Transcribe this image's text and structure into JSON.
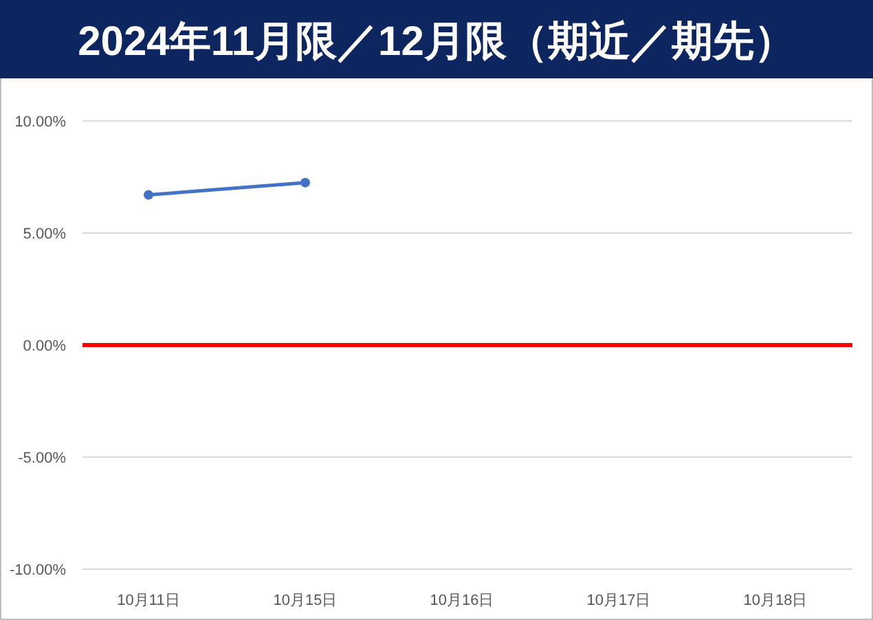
{
  "chart_data": {
    "type": "line",
    "title": "2024年11月限／12月限（期近／期先）",
    "categories": [
      "10月11日",
      "10月15日",
      "10月16日",
      "10月17日",
      "10月18日"
    ],
    "series": [
      {
        "color": "#4472c4",
        "values": [
          6.7,
          7.25,
          null,
          null,
          null
        ]
      }
    ],
    "ylim": [
      -10,
      10
    ],
    "yticks": [
      {
        "value": -10,
        "label": "-10.00%"
      },
      {
        "value": -5,
        "label": "-5.00%"
      },
      {
        "value": 0,
        "label": "0.00%"
      },
      {
        "value": 5,
        "label": "5.00%"
      },
      {
        "value": 10,
        "label": "10.00%"
      }
    ],
    "grid": "y",
    "marker": "circle",
    "line_style": "solid",
    "ref_lines": [
      {
        "axis": "y",
        "value": 0,
        "color": "#ff0000"
      }
    ]
  }
}
